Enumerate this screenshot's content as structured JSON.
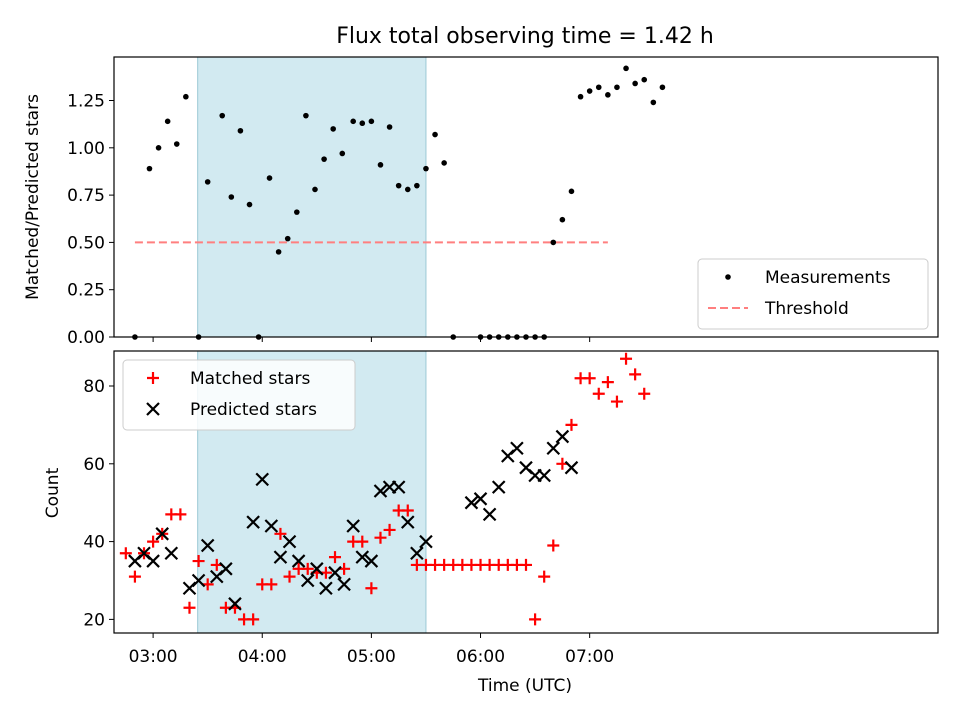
{
  "title": "Flux total observing time = 1.42 h",
  "xlabel": "Time (UTC)",
  "x_ticks": [
    "03:00",
    "04:00",
    "05:00",
    "06:00",
    "07:00"
  ],
  "colors": {
    "measurement": "#000000",
    "threshold": "#ff7f7f",
    "matched": "#ff0000",
    "predicted": "#000000",
    "span": "#add8e6"
  },
  "chart_data": [
    {
      "type": "scatter",
      "ylabel": "Matched/Predicted stars",
      "x_unit": "minutes since 00:00 UTC",
      "xlim": [
        158.5,
        611.5
      ],
      "ylim": [
        0,
        1.48
      ],
      "y_ticks": [
        "0.00",
        "0.25",
        "0.50",
        "0.75",
        "1.00",
        "1.25"
      ],
      "shaded_span": [
        204.5,
        330
      ],
      "threshold": {
        "value": 0.5,
        "x_range": [
          170,
          430
        ],
        "style": "dashed"
      },
      "legend": {
        "position": "lower right",
        "entries": [
          "Measurements",
          "Threshold"
        ]
      },
      "series": [
        {
          "name": "Measurements",
          "x": [
            170,
            178,
            183,
            188,
            193,
            198,
            205,
            210,
            218,
            223,
            228,
            233,
            238,
            244,
            249,
            254,
            259,
            264,
            269,
            274,
            279,
            284,
            290,
            295,
            300,
            305,
            310,
            315,
            320,
            325,
            330,
            335,
            340,
            345,
            360,
            365,
            370,
            375,
            380,
            385,
            390,
            395,
            400,
            405,
            410,
            415,
            420,
            425,
            430,
            435,
            440,
            445,
            450,
            455,
            460
          ],
          "y": [
            0,
            0.89,
            1.0,
            1.14,
            1.02,
            1.27,
            0,
            0.82,
            1.17,
            0.74,
            1.09,
            0.7,
            0,
            0.84,
            0.45,
            0.52,
            0.66,
            1.17,
            0.78,
            0.94,
            1.1,
            0.97,
            1.14,
            1.13,
            1.14,
            0.91,
            1.11,
            0.8,
            0.78,
            0.8,
            0.89,
            1.07,
            0.92,
            0,
            0,
            0,
            0,
            0,
            0,
            0,
            0,
            0,
            0.5,
            0.62,
            0.77,
            1.27,
            1.3,
            1.32,
            1.28,
            1.32,
            1.42,
            1.34,
            1.36,
            1.24,
            1.32
          ]
        }
      ]
    },
    {
      "type": "scatter",
      "ylabel": "Count",
      "x_unit": "minutes since 00:00 UTC",
      "xlim": [
        158.5,
        611.5
      ],
      "ylim": [
        16.5,
        89
      ],
      "y_ticks": [
        "20",
        "40",
        "60",
        "80"
      ],
      "shaded_span": [
        204.5,
        330
      ],
      "legend": {
        "position": "upper left",
        "entries": [
          "Matched stars",
          "Predicted stars"
        ]
      },
      "series": [
        {
          "name": "Matched stars",
          "marker": "plus",
          "x": [
            165,
            170,
            175,
            180,
            185,
            190,
            195,
            200,
            205,
            210,
            215,
            220,
            225,
            230,
            235,
            240,
            245,
            250,
            255,
            260,
            265,
            270,
            275,
            280,
            285,
            290,
            295,
            300,
            305,
            310,
            315,
            320,
            325,
            330,
            335,
            340,
            345,
            350,
            355,
            360,
            365,
            370,
            375,
            380,
            385,
            390,
            395,
            400,
            405,
            410,
            415,
            420,
            425,
            430,
            435,
            440,
            445,
            450,
            455,
            460
          ],
          "y": [
            37,
            31,
            37,
            40,
            42,
            47,
            47,
            23,
            35,
            29,
            34,
            23,
            23,
            20,
            20,
            29,
            29,
            42,
            31,
            33,
            33,
            32,
            32,
            36,
            33,
            40,
            40,
            28,
            41,
            43,
            48,
            48,
            34,
            34,
            34,
            34,
            34,
            34,
            34,
            34,
            34,
            34,
            34,
            34,
            34,
            20,
            31,
            39,
            60,
            70,
            82,
            82,
            78,
            81,
            76,
            87,
            83,
            78,
            null,
            null
          ]
        },
        {
          "name": "Predicted stars",
          "marker": "x",
          "x": [
            170,
            175,
            180,
            185,
            190,
            200,
            205,
            210,
            215,
            220,
            225,
            235,
            240,
            245,
            250,
            255,
            260,
            265,
            270,
            275,
            280,
            285,
            290,
            295,
            300,
            305,
            310,
            315,
            320,
            325,
            330,
            355,
            360,
            365,
            370,
            375,
            380,
            385,
            390,
            395,
            400,
            405,
            410,
            415,
            420
          ],
          "y": [
            35,
            37,
            35,
            42,
            37,
            28,
            30,
            39,
            31,
            33,
            24,
            45,
            56,
            44,
            36,
            40,
            35,
            30,
            33,
            28,
            32,
            29,
            44,
            36,
            35,
            53,
            54,
            54,
            45,
            37,
            40,
            50,
            51,
            47,
            54,
            62,
            64,
            59,
            57,
            57,
            64,
            67,
            59,
            null,
            null
          ]
        }
      ]
    }
  ]
}
